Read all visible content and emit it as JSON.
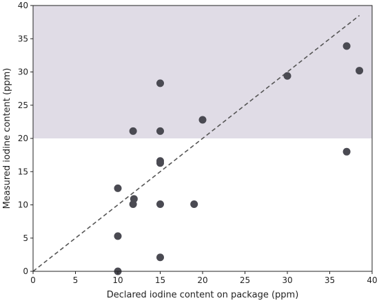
{
  "chart_data": {
    "type": "scatter",
    "xlabel": "Declared iodine content on package (ppm)",
    "ylabel": "Measured iodine content (ppm)",
    "xlim": [
      0,
      40
    ],
    "ylim": [
      0,
      40
    ],
    "x_ticks": [
      0,
      5,
      10,
      15,
      20,
      25,
      30,
      35,
      40
    ],
    "y_ticks": [
      0,
      5,
      10,
      15,
      20,
      25,
      30,
      35,
      40
    ],
    "grid": false,
    "legend": "none",
    "shaded_region": {
      "y_from": 20,
      "y_to": 40,
      "color": "#e0dce6"
    },
    "reference_line": {
      "style": "dashed",
      "color": "#555555",
      "from": [
        0,
        0
      ],
      "to": [
        38.5,
        38.5
      ]
    },
    "marker_color": "#4a4a52",
    "series": [
      {
        "points": [
          [
            10,
            0
          ],
          [
            10,
            5.3
          ],
          [
            10,
            12.5
          ],
          [
            11.8,
            10.1
          ],
          [
            11.9,
            10.9
          ],
          [
            11.8,
            21.1
          ],
          [
            15,
            2.1
          ],
          [
            15,
            10.1
          ],
          [
            15,
            16.3
          ],
          [
            15,
            16.6
          ],
          [
            15,
            21.1
          ],
          [
            15,
            28.3
          ],
          [
            19,
            10.1
          ],
          [
            20,
            22.8
          ],
          [
            30,
            29.4
          ],
          [
            37,
            18.0
          ],
          [
            37,
            33.9
          ],
          [
            38.5,
            30.2
          ]
        ]
      }
    ]
  }
}
